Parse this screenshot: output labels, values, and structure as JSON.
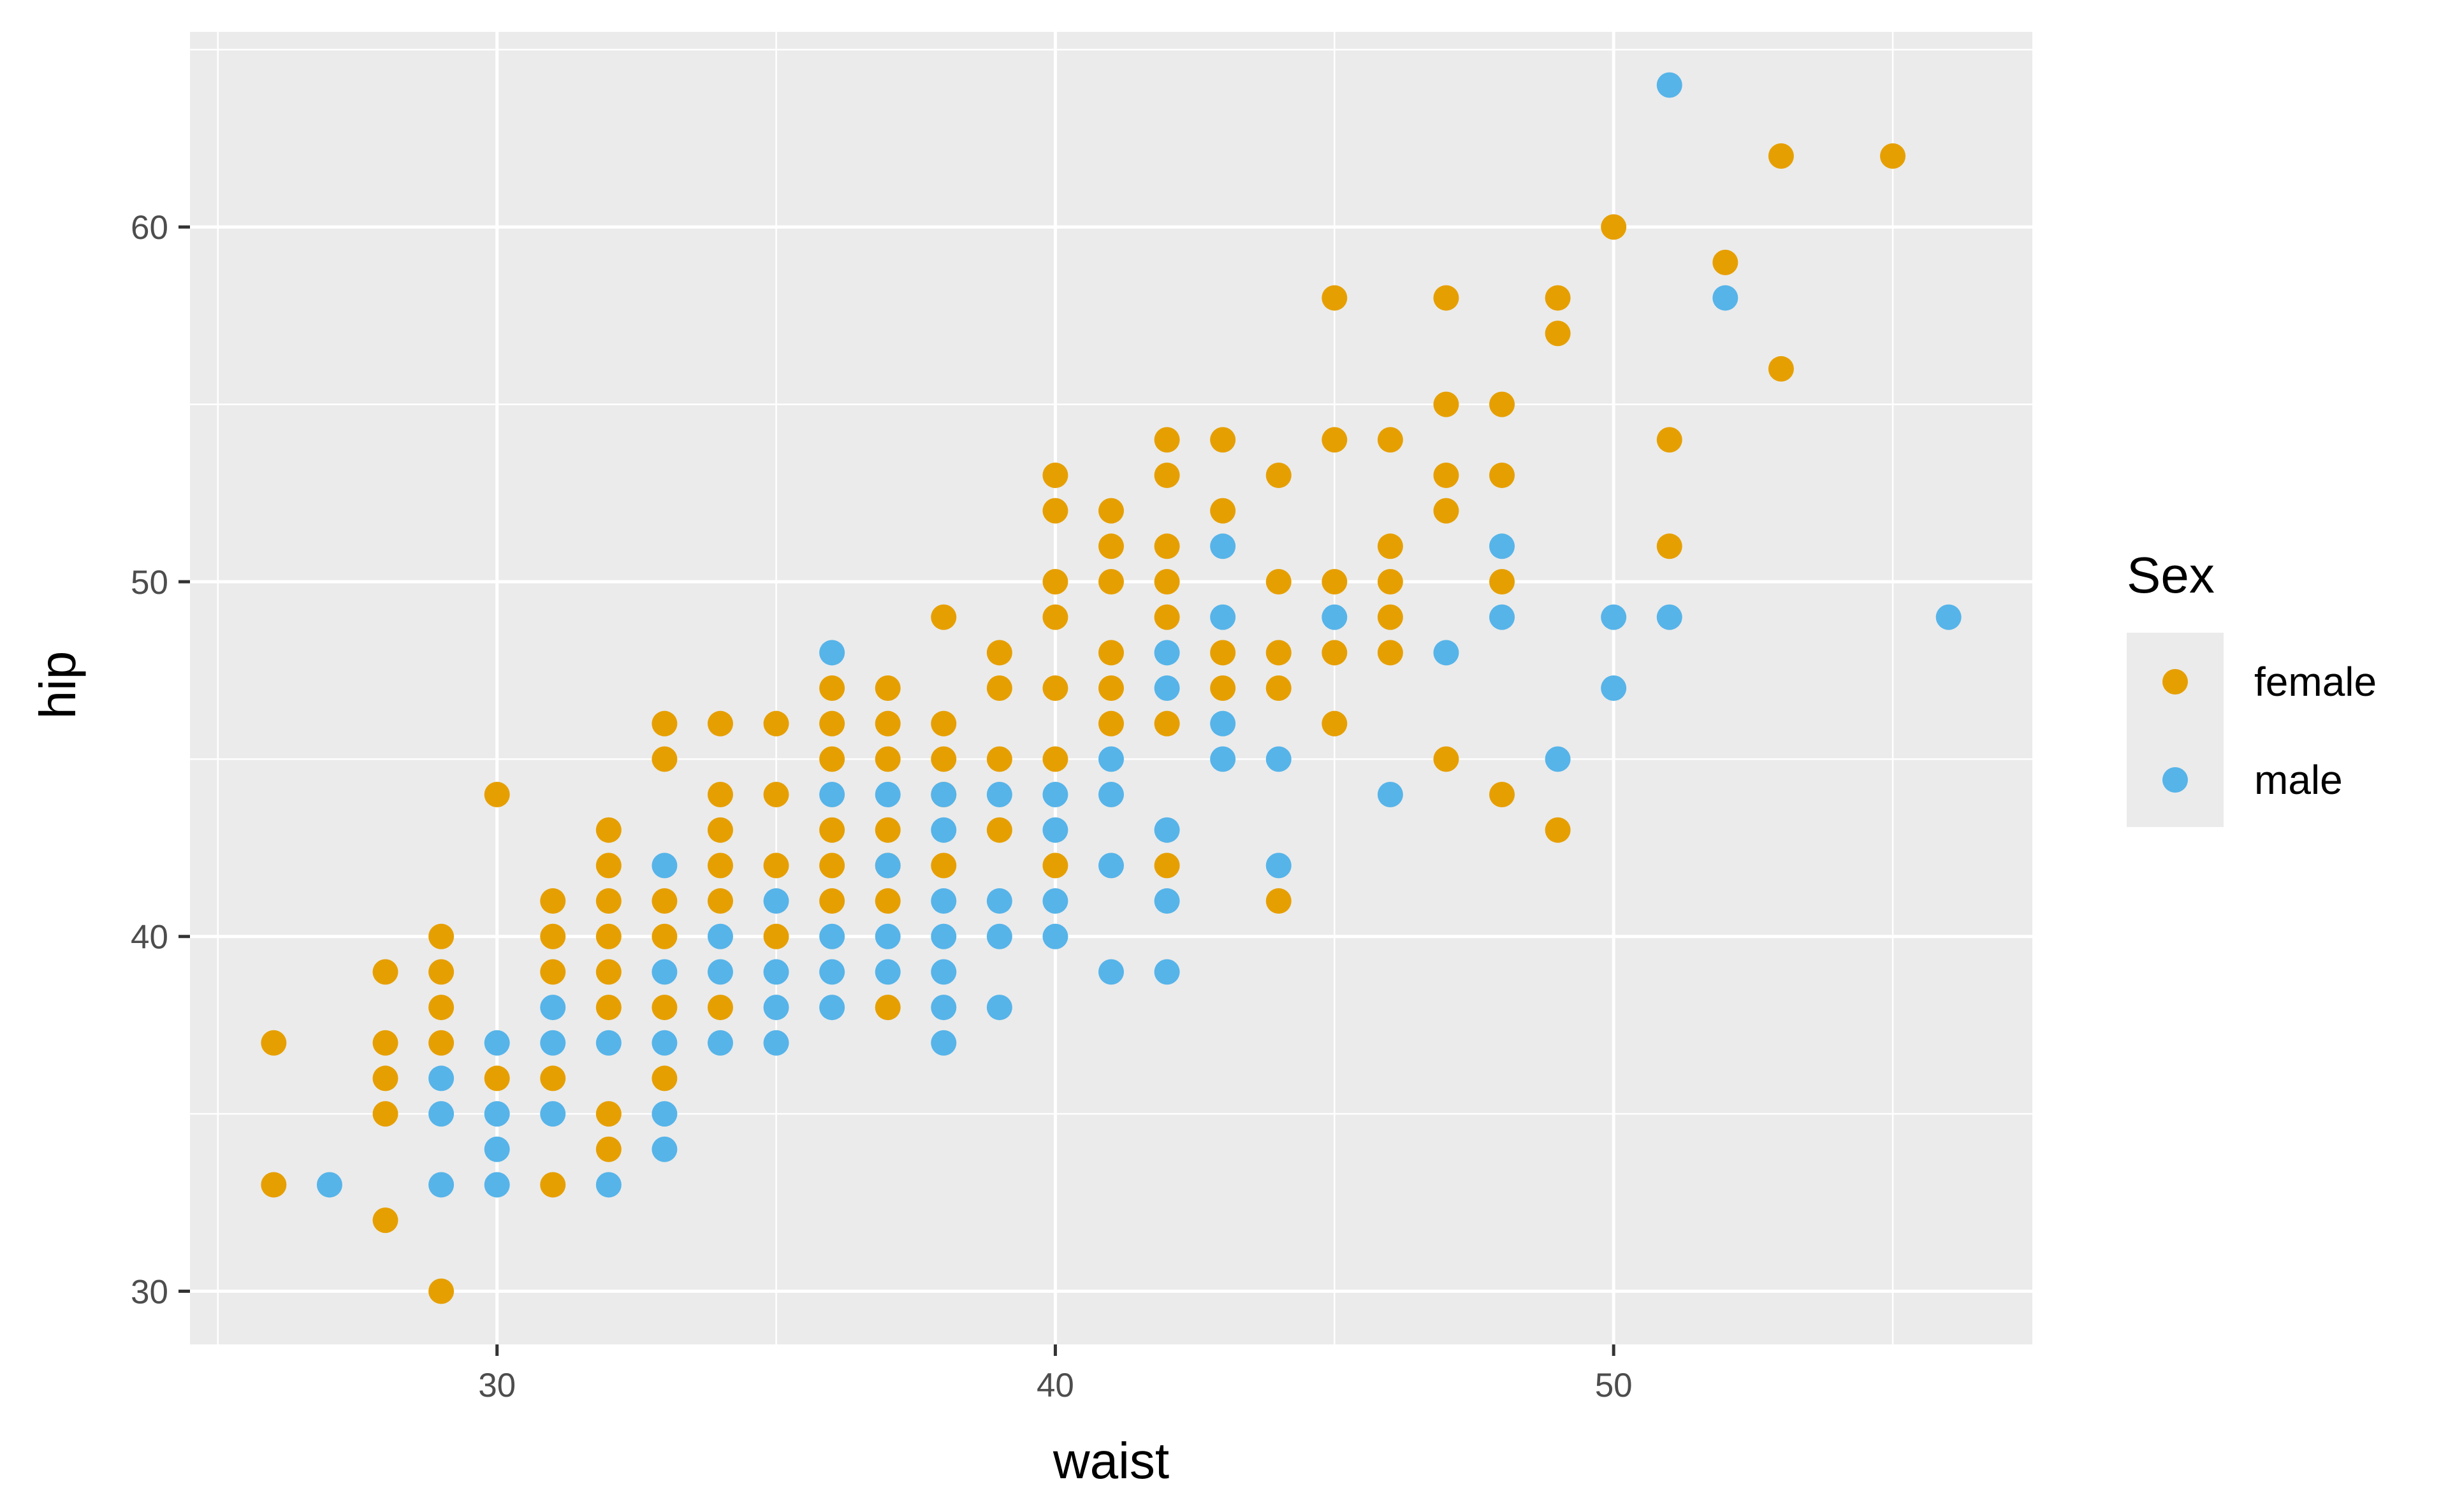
{
  "chart_data": {
    "type": "scatter",
    "title": "",
    "xlabel": "waist",
    "ylabel": "hip",
    "xlim": [
      24.5,
      57.5
    ],
    "ylim": [
      28.5,
      65.5
    ],
    "x_ticks": [
      30,
      40,
      50
    ],
    "y_ticks": [
      30,
      40,
      50,
      60
    ],
    "grid": true,
    "legend": {
      "title": "Sex",
      "position": "right"
    },
    "colors": {
      "female": "#E69F00",
      "male": "#56B4E9",
      "panel": "#EBEBEB",
      "grid": "#FFFFFF"
    },
    "series": [
      {
        "name": "female",
        "color": "#E69F00",
        "points": [
          [
            26,
            37
          ],
          [
            26,
            33
          ],
          [
            28,
            39
          ],
          [
            28,
            37
          ],
          [
            28,
            36
          ],
          [
            28,
            35
          ],
          [
            28,
            32
          ],
          [
            29,
            40
          ],
          [
            29,
            39
          ],
          [
            29,
            38
          ],
          [
            29,
            37
          ],
          [
            29,
            30
          ],
          [
            30,
            44
          ],
          [
            30,
            36
          ],
          [
            31,
            41
          ],
          [
            31,
            40
          ],
          [
            31,
            39
          ],
          [
            31,
            36
          ],
          [
            31,
            33
          ],
          [
            32,
            43
          ],
          [
            32,
            42
          ],
          [
            32,
            41
          ],
          [
            32,
            40
          ],
          [
            32,
            39
          ],
          [
            32,
            38
          ],
          [
            32,
            35
          ],
          [
            32,
            34
          ],
          [
            33,
            46
          ],
          [
            33,
            45
          ],
          [
            33,
            41
          ],
          [
            33,
            40
          ],
          [
            33,
            38
          ],
          [
            33,
            36
          ],
          [
            34,
            46
          ],
          [
            34,
            44
          ],
          [
            34,
            43
          ],
          [
            34,
            42
          ],
          [
            34,
            41
          ],
          [
            34,
            38
          ],
          [
            35,
            46
          ],
          [
            35,
            44
          ],
          [
            35,
            42
          ],
          [
            35,
            40
          ],
          [
            36,
            47
          ],
          [
            36,
            46
          ],
          [
            36,
            45
          ],
          [
            36,
            43
          ],
          [
            36,
            42
          ],
          [
            36,
            41
          ],
          [
            37,
            47
          ],
          [
            37,
            46
          ],
          [
            37,
            45
          ],
          [
            37,
            43
          ],
          [
            37,
            42
          ],
          [
            37,
            41
          ],
          [
            37,
            38
          ],
          [
            38,
            49
          ],
          [
            38,
            46
          ],
          [
            38,
            45
          ],
          [
            38,
            44
          ],
          [
            38,
            42
          ],
          [
            39,
            48
          ],
          [
            39,
            47
          ],
          [
            39,
            45
          ],
          [
            39,
            43
          ],
          [
            40,
            53
          ],
          [
            40,
            52
          ],
          [
            40,
            50
          ],
          [
            40,
            49
          ],
          [
            40,
            47
          ],
          [
            40,
            45
          ],
          [
            40,
            42
          ],
          [
            41,
            52
          ],
          [
            41,
            51
          ],
          [
            41,
            50
          ],
          [
            41,
            48
          ],
          [
            41,
            47
          ],
          [
            41,
            46
          ],
          [
            42,
            54
          ],
          [
            42,
            53
          ],
          [
            42,
            51
          ],
          [
            42,
            50
          ],
          [
            42,
            49
          ],
          [
            42,
            46
          ],
          [
            42,
            42
          ],
          [
            43,
            54
          ],
          [
            43,
            52
          ],
          [
            43,
            48
          ],
          [
            43,
            47
          ],
          [
            44,
            53
          ],
          [
            44,
            50
          ],
          [
            44,
            48
          ],
          [
            44,
            47
          ],
          [
            44,
            41
          ],
          [
            45,
            58
          ],
          [
            45,
            54
          ],
          [
            45,
            50
          ],
          [
            45,
            48
          ],
          [
            45,
            46
          ],
          [
            46,
            54
          ],
          [
            46,
            51
          ],
          [
            46,
            50
          ],
          [
            46,
            49
          ],
          [
            46,
            48
          ],
          [
            47,
            58
          ],
          [
            47,
            55
          ],
          [
            47,
            53
          ],
          [
            47,
            52
          ],
          [
            47,
            45
          ],
          [
            48,
            55
          ],
          [
            48,
            53
          ],
          [
            48,
            50
          ],
          [
            48,
            44
          ],
          [
            49,
            58
          ],
          [
            49,
            57
          ],
          [
            49,
            43
          ],
          [
            50,
            60
          ],
          [
            51,
            54
          ],
          [
            51,
            51
          ],
          [
            52,
            59
          ],
          [
            53,
            62
          ],
          [
            53,
            56
          ],
          [
            55,
            62
          ]
        ]
      },
      {
        "name": "male",
        "color": "#56B4E9",
        "points": [
          [
            27,
            33
          ],
          [
            29,
            36
          ],
          [
            29,
            35
          ],
          [
            29,
            33
          ],
          [
            30,
            37
          ],
          [
            30,
            35
          ],
          [
            30,
            34
          ],
          [
            30,
            33
          ],
          [
            31,
            38
          ],
          [
            31,
            37
          ],
          [
            31,
            35
          ],
          [
            32,
            37
          ],
          [
            32,
            33
          ],
          [
            33,
            42
          ],
          [
            33,
            39
          ],
          [
            33,
            37
          ],
          [
            33,
            35
          ],
          [
            33,
            34
          ],
          [
            34,
            40
          ],
          [
            34,
            39
          ],
          [
            34,
            37
          ],
          [
            35,
            41
          ],
          [
            35,
            39
          ],
          [
            35,
            38
          ],
          [
            35,
            37
          ],
          [
            36,
            48
          ],
          [
            36,
            44
          ],
          [
            36,
            40
          ],
          [
            36,
            39
          ],
          [
            36,
            38
          ],
          [
            37,
            44
          ],
          [
            37,
            42
          ],
          [
            37,
            40
          ],
          [
            37,
            39
          ],
          [
            38,
            44
          ],
          [
            38,
            43
          ],
          [
            38,
            41
          ],
          [
            38,
            40
          ],
          [
            38,
            39
          ],
          [
            38,
            38
          ],
          [
            38,
            37
          ],
          [
            39,
            44
          ],
          [
            39,
            41
          ],
          [
            39,
            40
          ],
          [
            39,
            38
          ],
          [
            40,
            44
          ],
          [
            40,
            43
          ],
          [
            40,
            41
          ],
          [
            40,
            40
          ],
          [
            41,
            45
          ],
          [
            41,
            44
          ],
          [
            41,
            42
          ],
          [
            41,
            39
          ],
          [
            42,
            48
          ],
          [
            42,
            47
          ],
          [
            42,
            43
          ],
          [
            42,
            41
          ],
          [
            42,
            39
          ],
          [
            43,
            51
          ],
          [
            43,
            49
          ],
          [
            43,
            46
          ],
          [
            43,
            45
          ],
          [
            44,
            45
          ],
          [
            44,
            42
          ],
          [
            45,
            49
          ],
          [
            46,
            44
          ],
          [
            47,
            48
          ],
          [
            48,
            51
          ],
          [
            48,
            49
          ],
          [
            49,
            45
          ],
          [
            50,
            49
          ],
          [
            50,
            47
          ],
          [
            51,
            64
          ],
          [
            51,
            49
          ],
          [
            52,
            58
          ],
          [
            56,
            49
          ]
        ]
      }
    ]
  }
}
